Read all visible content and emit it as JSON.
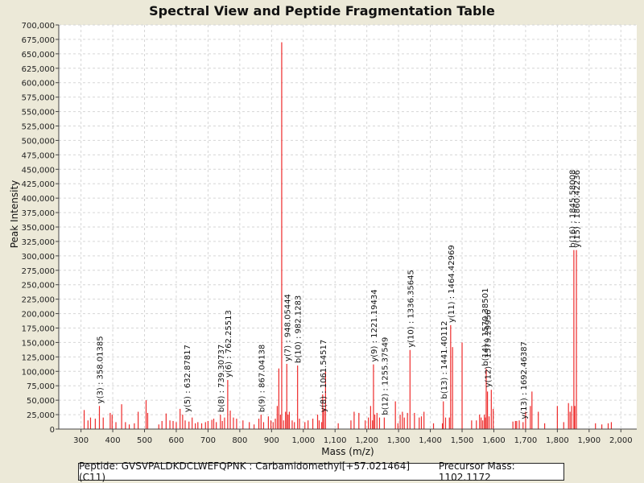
{
  "chart_data": {
    "type": "bar",
    "title": "Spectral View and Peptide Fragmentation Table",
    "xlabel": "Mass (m/z)",
    "ylabel": "Peak Intensity",
    "xlim": [
      230,
      2050
    ],
    "ylim": [
      0,
      700000
    ],
    "xticks": [
      300,
      400,
      500,
      600,
      700,
      800,
      900,
      1000,
      1100,
      1200,
      1300,
      1400,
      1500,
      1600,
      1700,
      1800,
      1900,
      2000
    ],
    "xtick_labels": [
      "300",
      "400",
      "500",
      "600",
      "700",
      "800",
      "900",
      "1,000",
      "1,100",
      "1,200",
      "1,300",
      "1,400",
      "1,500",
      "1,600",
      "1,700",
      "1,800",
      "1,900",
      "2,000"
    ],
    "yticks": [
      0,
      25000,
      50000,
      75000,
      100000,
      125000,
      150000,
      175000,
      200000,
      225000,
      250000,
      275000,
      300000,
      325000,
      350000,
      375000,
      400000,
      425000,
      450000,
      475000,
      500000,
      525000,
      550000,
      575000,
      600000,
      625000,
      650000,
      675000,
      700000
    ],
    "ytick_labels": [
      "0",
      "25,000",
      "50,000",
      "75,000",
      "100,000",
      "125,000",
      "150,000",
      "175,000",
      "200,000",
      "225,000",
      "250,000",
      "275,000",
      "300,000",
      "325,000",
      "350,000",
      "375,000",
      "400,000",
      "425,000",
      "450,000",
      "475,000",
      "500,000",
      "525,000",
      "550,000",
      "575,000",
      "600,000",
      "625,000",
      "650,000",
      "675,000",
      "700,000"
    ],
    "grid": true,
    "series": [
      {
        "name": "peaks",
        "color": "#ee2b2b",
        "x": [
          310,
          322,
          330,
          345,
          358,
          370,
          392,
          398,
          410,
          428,
          440,
          452,
          468,
          480,
          505,
          510,
          545,
          555,
          568,
          580,
          590,
          600,
          612,
          620,
          628,
          640,
          650,
          660,
          668,
          680,
          692,
          700,
          712,
          718,
          726,
          739,
          745,
          752,
          762,
          770,
          780,
          790,
          810,
          830,
          845,
          860,
          867,
          875,
          890,
          898,
          905,
          912,
          918,
          923,
          928,
          932,
          938,
          944,
          948,
          952,
          956,
          965,
          972,
          982,
          988,
          1005,
          1015,
          1030,
          1045,
          1050,
          1058,
          1061,
          1065,
          1070,
          1110,
          1150,
          1160,
          1175,
          1195,
          1205,
          1212,
          1218,
          1221,
          1225,
          1232,
          1240,
          1255,
          1290,
          1298,
          1305,
          1312,
          1318,
          1328,
          1336,
          1350,
          1365,
          1372,
          1380,
          1410,
          1438,
          1441,
          1448,
          1460,
          1464,
          1470,
          1500,
          1530,
          1545,
          1555,
          1560,
          1565,
          1570,
          1574,
          1576,
          1580,
          1585,
          1592,
          1598,
          1660,
          1668,
          1672,
          1680,
          1692,
          1700,
          1715,
          1720,
          1740,
          1760,
          1800,
          1820,
          1835,
          1840,
          1845,
          1852,
          1855,
          1860,
          1920,
          1940,
          1960,
          1970
        ],
        "values": [
          33000,
          15000,
          20000,
          18000,
          40000,
          20000,
          28000,
          25000,
          12000,
          43000,
          12000,
          8000,
          10000,
          30000,
          50000,
          28000,
          8000,
          14000,
          27000,
          15000,
          14000,
          12000,
          35000,
          25000,
          15000,
          13000,
          20000,
          10000,
          12000,
          10000,
          12000,
          14000,
          16000,
          18000,
          12000,
          25000,
          14000,
          20000,
          85000,
          32000,
          20000,
          18000,
          15000,
          12000,
          8000,
          18000,
          25000,
          12000,
          22000,
          15000,
          12000,
          18000,
          40000,
          105000,
          25000,
          670000,
          15000,
          30000,
          113000,
          25000,
          30000,
          15000,
          12000,
          110000,
          18000,
          12000,
          15000,
          18000,
          25000,
          15000,
          12000,
          60000,
          35000,
          100000,
          10000,
          15000,
          30000,
          28000,
          15000,
          20000,
          40000,
          15000,
          112000,
          25000,
          28000,
          20000,
          20000,
          48000,
          10000,
          25000,
          30000,
          20000,
          28000,
          137000,
          28000,
          20000,
          22000,
          30000,
          10000,
          10000,
          48000,
          20000,
          20000,
          180000,
          142000,
          150000,
          15000,
          15000,
          25000,
          20000,
          15000,
          25000,
          20000,
          105000,
          65000,
          22000,
          68000,
          35000,
          13000,
          14000,
          14000,
          15000,
          12000,
          30000,
          40000,
          65000,
          30000,
          10000,
          40000,
          12000,
          45000,
          30000,
          40000,
          310000,
          40000,
          310000,
          10000,
          8000,
          10000,
          12000
        ]
      }
    ],
    "annotations": [
      {
        "x": 358.01385,
        "y": 40000,
        "label": "y(3) : 358.01385"
      },
      {
        "x": 632.87817,
        "y": 25000,
        "label": "y(5) : 632.87817"
      },
      {
        "x": 739.30737,
        "y": 25000,
        "label": "b(8) : 739.30737"
      },
      {
        "x": 762.25513,
        "y": 85000,
        "label": "y(6) : 762.25513"
      },
      {
        "x": 867.04138,
        "y": 25000,
        "label": "b(9) : 867.04138"
      },
      {
        "x": 948.05444,
        "y": 113000,
        "label": "y(7) : 948.05444"
      },
      {
        "x": 982.1283,
        "y": 110000,
        "label": "b(10) : 982.1283"
      },
      {
        "x": 1061.54517,
        "y": 25000,
        "label": "y(8) : 1061.54517"
      },
      {
        "x": 1221.19434,
        "y": 112000,
        "label": "y(9) : 1221.19434"
      },
      {
        "x": 1255.37549,
        "y": 20000,
        "label": "b(12) : 1255.37549"
      },
      {
        "x": 1336.35645,
        "y": 137000,
        "label": "y(10) : 1336.35645"
      },
      {
        "x": 1441.40112,
        "y": 48000,
        "label": "b(13) : 1441.40112"
      },
      {
        "x": 1464.42969,
        "y": 180000,
        "label": "y(11) : 1464.42969"
      },
      {
        "x": 1570.38501,
        "y": 105000,
        "label": "b(14) : 1570.38501"
      },
      {
        "x": 1579.29956,
        "y": 68000,
        "label": "y(12) : 1579.29956"
      },
      {
        "x": 1692.46387,
        "y": 13000,
        "label": "y(13) : 1692.46387"
      },
      {
        "x": 1845.58008,
        "y": 310000,
        "label": "b(16) : 1845.58008"
      },
      {
        "x": 1860.42236,
        "y": 310000,
        "label": "y(15) : 1860.42236"
      }
    ]
  },
  "footer": {
    "peptide": "Peptide: GVSVPALDKDCLWEFQPNK : Carbamidomethyl[+57.021464] (C11)",
    "precursor": "Precursor Mass: 1102.1172"
  }
}
